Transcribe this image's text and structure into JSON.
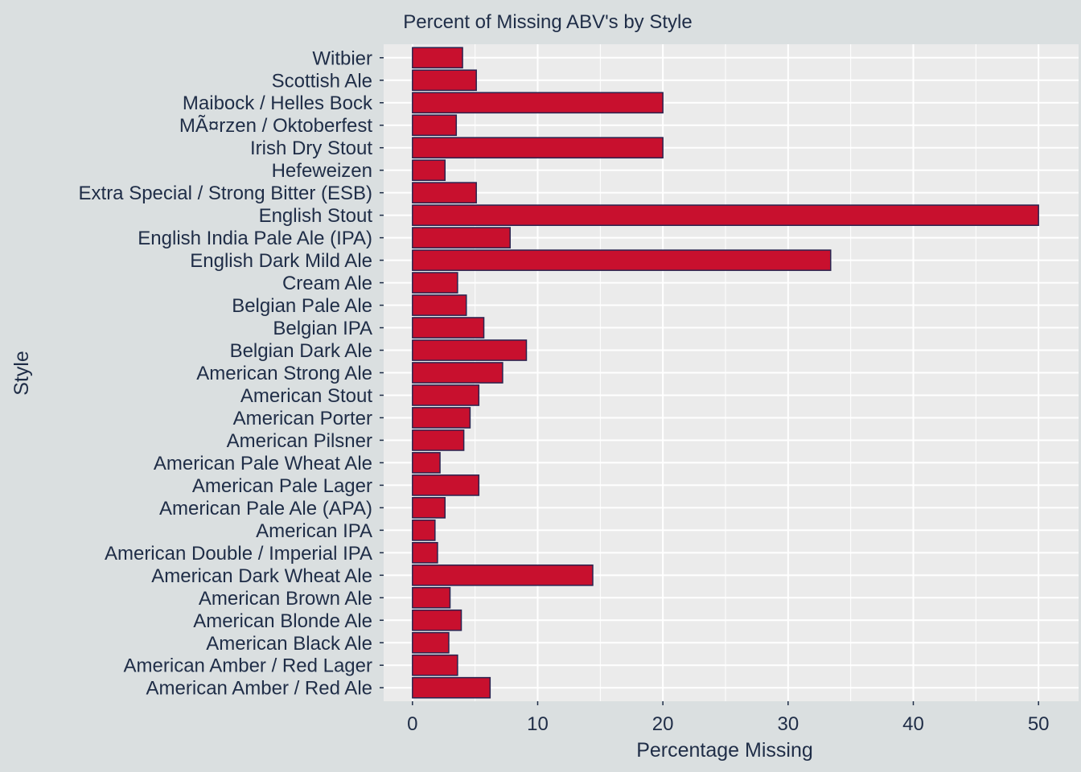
{
  "colors": {
    "background": "#dadfe0",
    "panel": "#ebebeb",
    "grid": "#ffffff",
    "bar_fill": "#c8102e",
    "bar_outline": "#2a2450",
    "text": "#1f2d47"
  },
  "chart_data": {
    "type": "bar",
    "orientation": "horizontal",
    "title": "Percent of Missing ABV's by Style",
    "xlabel": "Percentage Missing",
    "ylabel": "Style",
    "xlim": [
      -2.3,
      53.2
    ],
    "xticks": [
      0,
      10,
      20,
      30,
      40,
      50
    ],
    "xtick_labels": [
      "0",
      "10",
      "20",
      "30",
      "40",
      "50"
    ],
    "grid": true,
    "legend": "none",
    "categories": [
      "American Amber / Red Ale",
      "American Amber / Red Lager",
      "American Black Ale",
      "American Blonde Ale",
      "American Brown Ale",
      "American Dark Wheat Ale",
      "American Double / Imperial IPA",
      "American IPA",
      "American Pale Ale (APA)",
      "American Pale Lager",
      "American Pale Wheat Ale",
      "American Pilsner",
      "American Porter",
      "American Stout",
      "American Strong Ale",
      "Belgian Dark Ale",
      "Belgian IPA",
      "Belgian Pale Ale",
      "Cream Ale",
      "English Dark Mild Ale",
      "English India Pale Ale (IPA)",
      "English Stout",
      "Extra Special / Strong Bitter (ESB)",
      "Hefeweizen",
      "Irish Dry Stout",
      "MÃ¤rzen / Oktoberfest",
      "Maibock / Helles Bock",
      "Scottish Ale",
      "Witbier"
    ],
    "values": [
      6.2,
      3.6,
      2.9,
      3.9,
      3.0,
      14.4,
      2.0,
      1.8,
      2.6,
      5.3,
      2.2,
      4.1,
      4.6,
      5.3,
      7.2,
      9.1,
      5.7,
      4.3,
      3.6,
      33.4,
      7.8,
      50.0,
      5.1,
      2.6,
      20.0,
      3.5,
      20.0,
      5.1,
      4.0
    ]
  }
}
